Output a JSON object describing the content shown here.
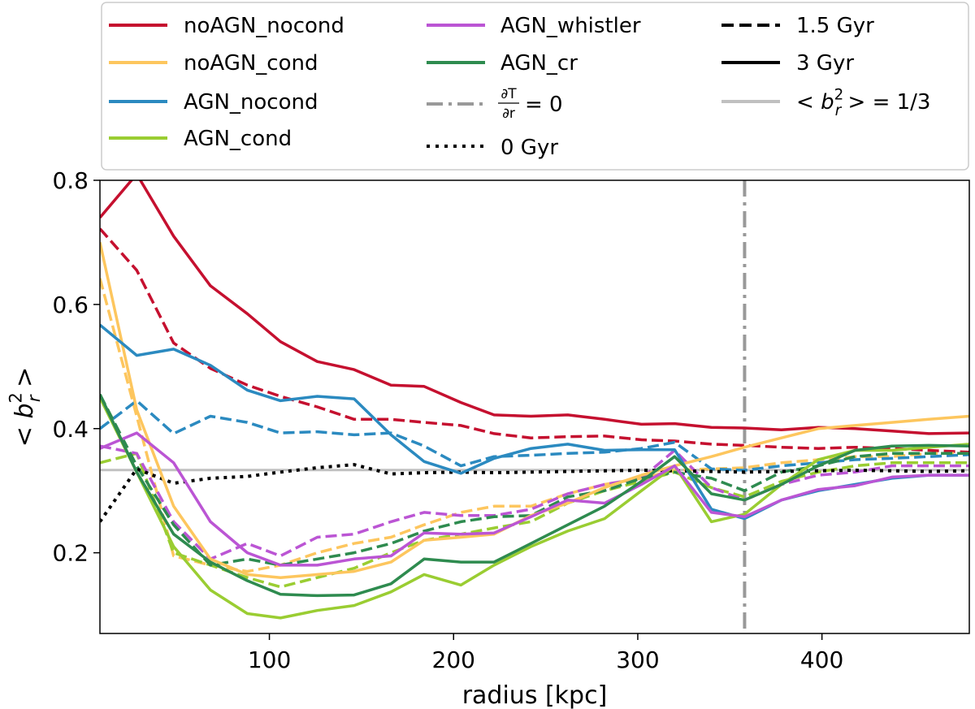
{
  "chart_data": {
    "type": "line",
    "title": "",
    "xlabel": "radius [kpc]",
    "ylabel_parts": {
      "open": "<",
      "base": "b",
      "sup": "2",
      "sub": "r",
      "close": ">"
    },
    "xlim": [
      8,
      480
    ],
    "ylim": [
      0.07,
      0.8
    ],
    "xticks": [
      100,
      200,
      300,
      400
    ],
    "yticks": [
      0.2,
      0.4,
      0.6,
      0.8
    ],
    "xtick_labels": [
      "100",
      "200",
      "300",
      "400"
    ],
    "ytick_labels": [
      "0.2",
      "0.4",
      "0.6",
      "0.8"
    ],
    "grid": false,
    "legend_location": "top",
    "colors": {
      "noAGN_nocond": "#c5102f",
      "noAGN_cond": "#fdc65e",
      "AGN_nocond": "#2b8ac0",
      "AGN_cond": "#9acd32",
      "AGN_whistler": "#bb55d4",
      "AGN_cr": "#2e8b4f",
      "black": "#000000",
      "gray": "#999999",
      "lightgray": "#c0c0c0"
    },
    "legend": {
      "col1": [
        "noAGN_nocond",
        "noAGN_cond",
        "AGN_nocond",
        "AGN_cond"
      ],
      "col2": [
        "AGN_whistler",
        "AGN_cr"
      ],
      "dTdr": {
        "num": "∂T",
        "den": "∂r",
        "rest": "= 0"
      },
      "zero": "0 Gyr",
      "t15": "1.5 Gyr",
      "t3": "3 Gyr",
      "ref_parts": {
        "open": "<",
        "base": "b",
        "sup": "2",
        "sub": "r",
        "close": ">",
        "rest": "= 1/3"
      }
    },
    "reference": {
      "horizontal_y": 0.3333,
      "vertical_x": 358
    },
    "x": [
      8,
      28,
      48,
      68,
      88,
      106,
      126,
      146,
      166,
      184,
      204,
      222,
      242,
      262,
      282,
      302,
      320,
      340,
      358,
      378,
      398,
      418,
      438,
      458,
      480
    ],
    "series_3gyr": [
      {
        "name": "noAGN_nocond",
        "values": [
          0.74,
          0.81,
          0.71,
          0.63,
          0.585,
          0.54,
          0.508,
          0.495,
          0.47,
          0.468,
          0.442,
          0.422,
          0.42,
          0.422,
          0.415,
          0.407,
          0.408,
          0.402,
          0.401,
          0.398,
          0.402,
          0.4,
          0.396,
          0.392,
          0.393
        ]
      },
      {
        "name": "noAGN_cond",
        "values": [
          0.7,
          0.43,
          0.275,
          0.19,
          0.165,
          0.16,
          0.165,
          0.17,
          0.185,
          0.22,
          0.225,
          0.23,
          0.26,
          0.28,
          0.305,
          0.325,
          0.34,
          0.355,
          0.37,
          0.385,
          0.4,
          0.405,
          0.41,
          0.415,
          0.42
        ]
      },
      {
        "name": "AGN_nocond",
        "values": [
          0.567,
          0.518,
          0.528,
          0.502,
          0.462,
          0.445,
          0.452,
          0.448,
          0.39,
          0.347,
          0.328,
          0.352,
          0.368,
          0.375,
          0.365,
          0.366,
          0.366,
          0.27,
          0.255,
          0.285,
          0.3,
          0.31,
          0.32,
          0.325,
          0.325
        ]
      },
      {
        "name": "AGN_cond",
        "values": [
          0.45,
          0.33,
          0.21,
          0.14,
          0.102,
          0.095,
          0.107,
          0.115,
          0.137,
          0.165,
          0.148,
          0.18,
          0.21,
          0.235,
          0.255,
          0.3,
          0.34,
          0.25,
          0.262,
          0.31,
          0.35,
          0.365,
          0.365,
          0.37,
          0.375
        ]
      },
      {
        "name": "AGN_whistler",
        "values": [
          0.368,
          0.393,
          0.345,
          0.25,
          0.2,
          0.18,
          0.18,
          0.19,
          0.195,
          0.232,
          0.23,
          0.232,
          0.258,
          0.285,
          0.28,
          0.31,
          0.34,
          0.265,
          0.258,
          0.285,
          0.302,
          0.308,
          0.322,
          0.325,
          0.325
        ]
      },
      {
        "name": "AGN_cr",
        "values": [
          0.455,
          0.33,
          0.23,
          0.185,
          0.155,
          0.133,
          0.131,
          0.132,
          0.15,
          0.19,
          0.185,
          0.185,
          0.215,
          0.245,
          0.275,
          0.315,
          0.355,
          0.295,
          0.285,
          0.31,
          0.34,
          0.365,
          0.372,
          0.373,
          0.372
        ]
      }
    ],
    "series_15gyr": [
      {
        "name": "noAGN_nocond",
        "values": [
          0.722,
          0.655,
          0.538,
          0.497,
          0.47,
          0.452,
          0.435,
          0.415,
          0.415,
          0.41,
          0.405,
          0.392,
          0.385,
          0.387,
          0.388,
          0.382,
          0.38,
          0.375,
          0.373,
          0.37,
          0.368,
          0.37,
          0.368,
          0.365,
          0.362
        ]
      },
      {
        "name": "noAGN_cond",
        "values": [
          0.642,
          0.42,
          0.195,
          0.18,
          0.17,
          0.18,
          0.2,
          0.215,
          0.225,
          0.245,
          0.265,
          0.275,
          0.275,
          0.295,
          0.31,
          0.32,
          0.333,
          0.335,
          0.337,
          0.345,
          0.35,
          0.355,
          0.355,
          0.36,
          0.36
        ]
      },
      {
        "name": "AGN_nocond",
        "values": [
          0.4,
          0.445,
          0.392,
          0.42,
          0.41,
          0.393,
          0.395,
          0.39,
          0.393,
          0.372,
          0.34,
          0.355,
          0.357,
          0.36,
          0.362,
          0.368,
          0.378,
          0.335,
          0.333,
          0.34,
          0.345,
          0.35,
          0.352,
          0.355,
          0.358
        ]
      },
      {
        "name": "AGN_cond",
        "values": [
          0.345,
          0.36,
          0.2,
          0.18,
          0.16,
          0.145,
          0.16,
          0.175,
          0.2,
          0.22,
          0.23,
          0.24,
          0.25,
          0.28,
          0.3,
          0.315,
          0.33,
          0.305,
          0.29,
          0.315,
          0.33,
          0.34,
          0.345,
          0.345,
          0.345
        ]
      },
      {
        "name": "AGN_whistler",
        "values": [
          0.372,
          0.36,
          0.25,
          0.19,
          0.215,
          0.195,
          0.225,
          0.23,
          0.25,
          0.265,
          0.26,
          0.26,
          0.27,
          0.295,
          0.31,
          0.32,
          0.365,
          0.305,
          0.285,
          0.31,
          0.325,
          0.33,
          0.34,
          0.34,
          0.34
        ]
      },
      {
        "name": "AGN_cr",
        "values": [
          0.455,
          0.34,
          0.245,
          0.18,
          0.19,
          0.18,
          0.19,
          0.2,
          0.215,
          0.235,
          0.25,
          0.258,
          0.26,
          0.29,
          0.3,
          0.32,
          0.33,
          0.32,
          0.3,
          0.33,
          0.34,
          0.355,
          0.36,
          0.36,
          0.36
        ]
      }
    ],
    "zero_gyr": {
      "name": "0 Gyr",
      "values": [
        0.25,
        0.335,
        0.312,
        0.32,
        0.323,
        0.33,
        0.337,
        0.342,
        0.327,
        0.329,
        0.33,
        0.329,
        0.33,
        0.331,
        0.332,
        0.333,
        0.332,
        0.331,
        0.33,
        0.331,
        0.332,
        0.333,
        0.332,
        0.331,
        0.332
      ]
    }
  }
}
